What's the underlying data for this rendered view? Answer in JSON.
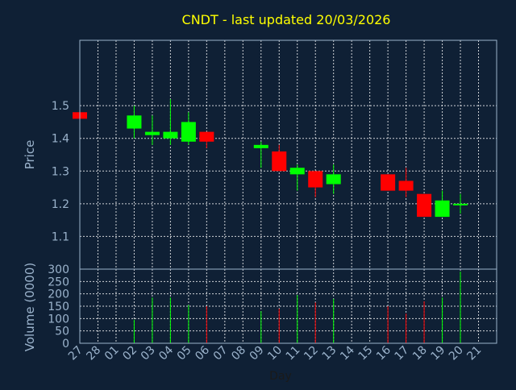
{
  "chart_data": {
    "type": "candlestick",
    "title": "CNDT - last updated 20/03/2026",
    "xlabel": "Day",
    "price_ylabel": "Price",
    "volume_ylabel": "Volume (0000)",
    "colors": {
      "background": "#0f2035",
      "title": "#ffff00",
      "axis_text": "#9bb3cc",
      "grid": "#ffffff",
      "up": "#00ff00",
      "down": "#ff0000"
    },
    "price_ylim": [
      1.0,
      1.7
    ],
    "price_yticks": [
      1.1,
      1.2,
      1.3,
      1.4,
      1.5
    ],
    "price_ytick_labels": [
      "1.1",
      "1.2",
      "1.3",
      "1.4",
      "1.5"
    ],
    "volume_ylim": [
      0,
      300
    ],
    "volume_yticks": [
      0,
      50,
      100,
      150,
      200,
      250,
      300
    ],
    "volume_ytick_labels": [
      "0",
      "50",
      "100",
      "150",
      "200",
      "250",
      "300"
    ],
    "x_tick_labels": [
      "27",
      "28",
      "01",
      "02",
      "03",
      "04",
      "05",
      "06",
      "07",
      "08",
      "09",
      "10",
      "11",
      "12",
      "13",
      "14",
      "15",
      "16",
      "17",
      "18",
      "19",
      "20",
      "21"
    ],
    "candles": [
      {
        "day": "27",
        "open": 1.48,
        "high": 1.48,
        "low": 1.46,
        "close": 1.46,
        "volume": 0
      },
      {
        "day": "02",
        "open": 1.43,
        "high": 1.5,
        "low": 1.4,
        "close": 1.47,
        "volume": 95
      },
      {
        "day": "03",
        "open": 1.41,
        "high": 1.47,
        "low": 1.38,
        "close": 1.42,
        "volume": 185
      },
      {
        "day": "04",
        "open": 1.4,
        "high": 1.52,
        "low": 1.38,
        "close": 1.42,
        "volume": 185
      },
      {
        "day": "05",
        "open": 1.39,
        "high": 1.48,
        "low": 1.38,
        "close": 1.45,
        "volume": 155
      },
      {
        "day": "06",
        "open": 1.42,
        "high": 1.42,
        "low": 1.37,
        "close": 1.39,
        "volume": 150
      },
      {
        "day": "09",
        "open": 1.37,
        "high": 1.39,
        "low": 1.31,
        "close": 1.38,
        "volume": 130
      },
      {
        "day": "10",
        "open": 1.36,
        "high": 1.38,
        "low": 1.3,
        "close": 1.3,
        "volume": 140
      },
      {
        "day": "11",
        "open": 1.29,
        "high": 1.32,
        "low": 1.24,
        "close": 1.31,
        "volume": 195
      },
      {
        "day": "12",
        "open": 1.3,
        "high": 1.3,
        "low": 1.22,
        "close": 1.25,
        "volume": 165
      },
      {
        "day": "13",
        "open": 1.26,
        "high": 1.32,
        "low": 1.23,
        "close": 1.29,
        "volume": 180
      },
      {
        "day": "16",
        "open": 1.29,
        "high": 1.29,
        "low": 1.24,
        "close": 1.24,
        "volume": 150
      },
      {
        "day": "17",
        "open": 1.27,
        "high": 1.31,
        "low": 1.22,
        "close": 1.24,
        "volume": 120
      },
      {
        "day": "18",
        "open": 1.23,
        "high": 1.23,
        "low": 1.16,
        "close": 1.16,
        "volume": 170
      },
      {
        "day": "19",
        "open": 1.16,
        "high": 1.24,
        "low": 1.16,
        "close": 1.21,
        "volume": 185
      },
      {
        "day": "20",
        "open": 1.2,
        "high": 1.23,
        "low": 1.17,
        "close": 1.2,
        "volume": 290
      }
    ]
  }
}
